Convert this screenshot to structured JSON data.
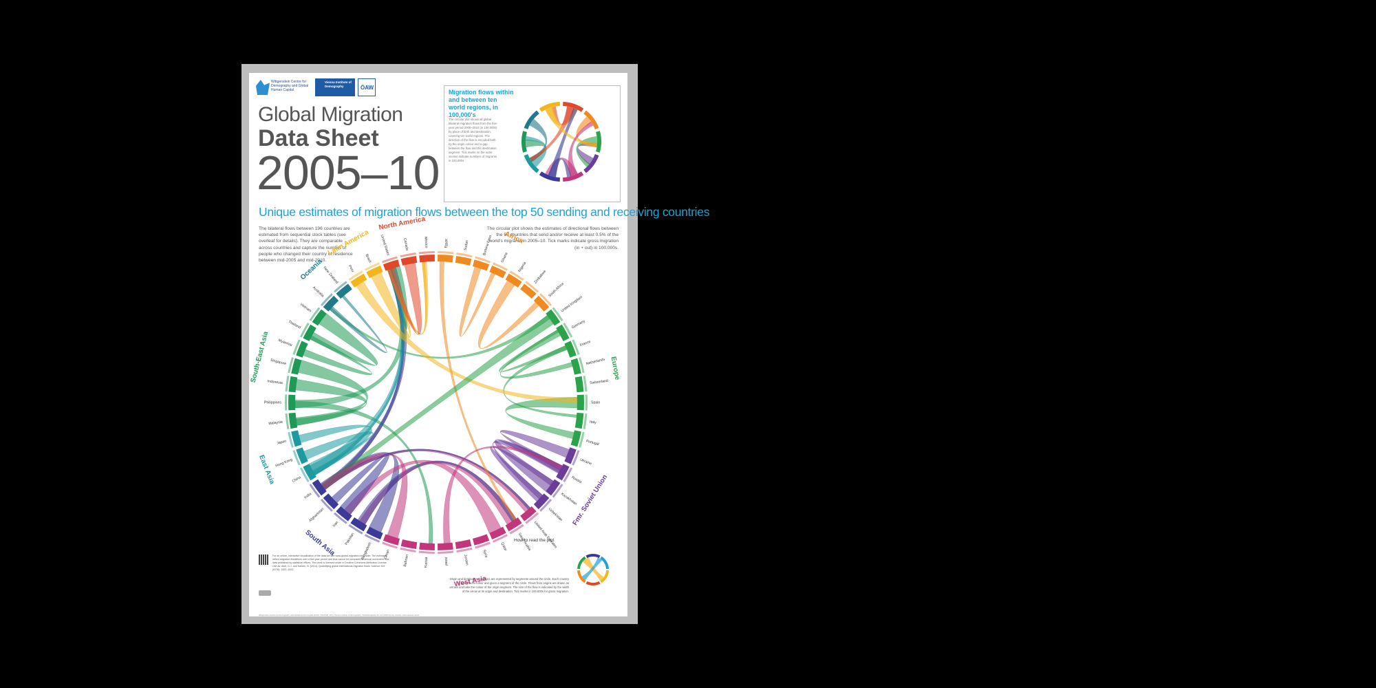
{
  "logos": {
    "wittgenstein": "Wittgenstein Centre for Demography and Global Human Capital",
    "vid": "Vienna Institute of Demography",
    "oaw": "ÖAW"
  },
  "title": {
    "line1": "Global Migration",
    "line2": "Data Sheet",
    "line3": "2005–10"
  },
  "inset": {
    "title": "Migration flows within and between ten world regions, in 100,000's",
    "text": "The circular plot shows all global bilateral migration flows from the five-year period 2005–2010 (in 100,000s) by place of birth and destination, covering ten world regions. The direction of the flow is encoded both by the origin colour and a gap between the flow and the destination segment. Tick marks on the outer section indicate numbers of migrants in 100,000s."
  },
  "subtitle": "Unique estimates of migration flows between the top 50 sending and receiving countries",
  "intro_left": "The bilateral flows between 196 countries are estimated from sequential stock tables (see overleaf for details). They are comparable across countries and capture the number of people who changed their country of residence between mid-2005 and mid-2010.",
  "intro_right": "The circular plot shows the estimates of directional flows between the 50 countries that send and/or receive at least 0.5% of the world's migrants in 2005–10. Tick marks indicate gross migration (in + out) in 100,000s.",
  "regions": [
    {
      "name": "North America",
      "color": "#e0482a"
    },
    {
      "name": "Africa",
      "color": "#f08a20"
    },
    {
      "name": "Europe",
      "color": "#2aa34a"
    },
    {
      "name": "Fmr. Soviet Union",
      "color": "#6a3d9a"
    },
    {
      "name": "West Asia",
      "color": "#c2367b"
    },
    {
      "name": "South Asia",
      "color": "#3b3a98"
    },
    {
      "name": "East Asia",
      "color": "#1d9aa0"
    },
    {
      "name": "South-East Asia",
      "color": "#1f9a56"
    },
    {
      "name": "Oceania",
      "color": "#217a8c"
    },
    {
      "name": "Latin America",
      "color": "#f3b51c"
    }
  ],
  "countries": [
    "United States",
    "Canada",
    "Mexico",
    "Egypt",
    "Sudan",
    "Burkina Faso",
    "Ghana",
    "Nigeria",
    "Zimbabwe",
    "South Africa",
    "United Kingdom",
    "Germany",
    "France",
    "Netherlands",
    "Switzerland",
    "Spain",
    "Italy",
    "Portugal",
    "Ukraine",
    "Russia",
    "Kazakhstan",
    "Uzbekistan",
    "United Arab Emirates",
    "Saudi Arabia",
    "Qatar",
    "Syria",
    "Jordan",
    "Israel",
    "Kuwait",
    "Bahrain",
    "Oman",
    "Bangladesh",
    "Pakistan",
    "Iran",
    "Afghanistan",
    "India",
    "China",
    "Hong Kong",
    "Japan",
    "Malaysia",
    "Philippines",
    "Indonesia",
    "Singapore",
    "Myanmar",
    "Thailand",
    "Vietnam",
    "Australia",
    "New Zealand",
    "Peru",
    "Brazil"
  ],
  "howto": {
    "title": "How to read the plot",
    "text": "Origin and destination countries are represented by segments around the circle. Each country is assigned a colour and given a segment of the circle. Flows from origins are drawn as arrows and take the colour of the origin segment. The size of the flow is indicated by the width of the arrow at its origin and destination. Tick marks in 100,000s for gross migration."
  },
  "notes": "For an online, interactive visualization of the data set see www.global-migration.info. Note: The estimates reflect migration transitions over a five-year period and thus cannot be compared to annual movement flow data published by statistical offices. This work is licensed under a Creative Commons Attribution License. Cite as: Abel, G.J. and Sander, N. (2014). Quantifying global international migration flows. Science 343 (6178): 1520–1522.",
  "footer": "Wittgenstein Centre for Demography and Global Human Capital (IIASA, VID/ÖAW, WU), Vienna Institute of Demography, Wohllebengasse 12–14, 1040 Vienna, Austria. www.oeaw.ac.at/vid"
}
